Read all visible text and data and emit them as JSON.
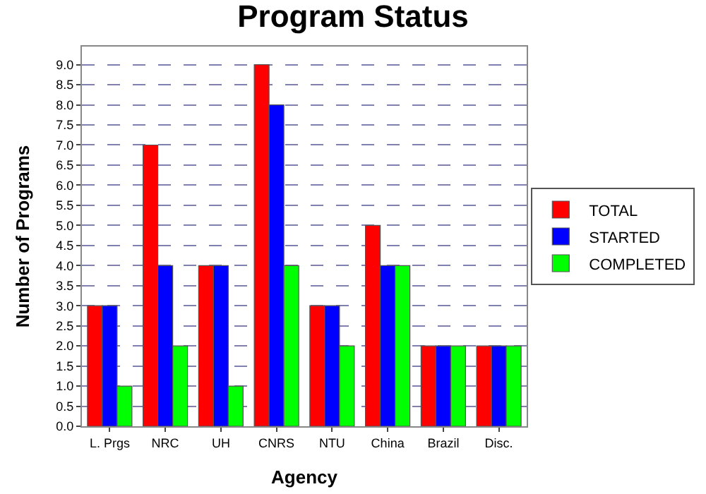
{
  "chart_data": {
    "type": "bar",
    "title": "Program Status",
    "xlabel": "Agency",
    "ylabel": "Number of Programs",
    "categories": [
      "L. Prgs",
      "NRC",
      "UH",
      "CNRS",
      "NTU",
      "China",
      "Brazil",
      "Disc."
    ],
    "series": [
      {
        "name": "TOTAL",
        "color": "#ff0000",
        "values": [
          3,
          7,
          4,
          9,
          3,
          5,
          2,
          2
        ]
      },
      {
        "name": "STARTED",
        "color": "#0000ff",
        "values": [
          3,
          4,
          4,
          8,
          3,
          4,
          2,
          2
        ]
      },
      {
        "name": "COMPLETED",
        "color": "#00ff00",
        "values": [
          1,
          2,
          1,
          4,
          2,
          4,
          2,
          2
        ]
      }
    ],
    "ylim": [
      0,
      9.45
    ],
    "yticks": [
      {
        "value": 0,
        "label": "0.0"
      },
      {
        "value": 0.5,
        "label": "0.5"
      },
      {
        "value": 1,
        "label": "1.0"
      },
      {
        "value": 1.5,
        "label": "1.5"
      },
      {
        "value": 2,
        "label": "2.0"
      },
      {
        "value": 2.5,
        "label": "2.5"
      },
      {
        "value": 3,
        "label": "3.0"
      },
      {
        "value": 3.5,
        "label": "3.5"
      },
      {
        "value": 4,
        "label": "4.0"
      },
      {
        "value": 4.5,
        "label": "4.5"
      },
      {
        "value": 5,
        "label": "5.0"
      },
      {
        "value": 5.5,
        "label": "5.5"
      },
      {
        "value": 6,
        "label": "6.0"
      },
      {
        "value": 6.5,
        "label": "6.5"
      },
      {
        "value": 7,
        "label": "7.0"
      },
      {
        "value": 7.5,
        "label": "7.5"
      },
      {
        "value": 8,
        "label": "8.0"
      },
      {
        "value": 8.5,
        "label": "8.5"
      },
      {
        "value": 9,
        "label": "9.0"
      }
    ],
    "grid": "y",
    "legend": "right"
  }
}
